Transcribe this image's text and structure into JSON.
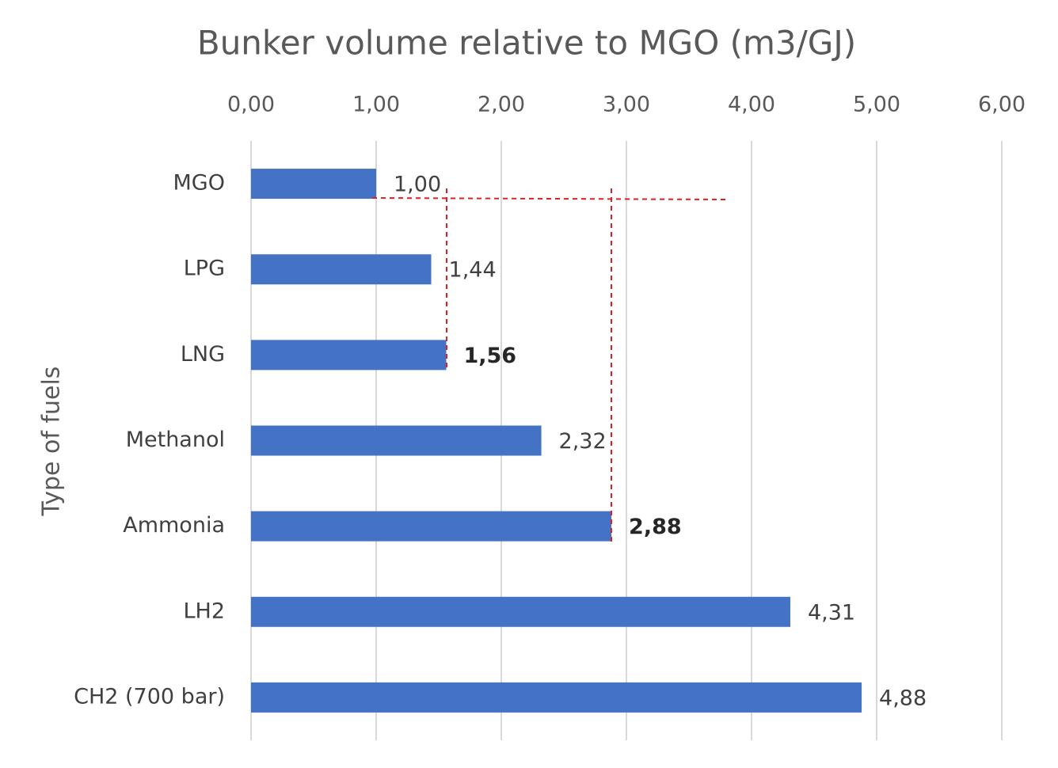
{
  "chart_data": {
    "type": "bar",
    "orientation": "horizontal",
    "title": "Bunker volume relative to MGO (m3/GJ)",
    "y_label": "Type of fuels",
    "categories": [
      "MGO",
      "LPG",
      "LNG",
      "Methanol",
      "Ammonia",
      "LH2",
      "CH2 (700 bar)"
    ],
    "values": [
      1.0,
      1.44,
      1.56,
      2.32,
      2.88,
      4.31,
      4.88
    ],
    "value_labels": [
      "1,00",
      "1,44",
      "1,56",
      "2,32",
      "2,88",
      "4,31",
      "4,88"
    ],
    "color": "#4472c4",
    "xlim": [
      0,
      6
    ],
    "xticks": [
      {
        "value": 0,
        "label": "0,00"
      },
      {
        "value": 1,
        "label": "1,00"
      },
      {
        "value": 2,
        "label": "2,00"
      },
      {
        "value": 3,
        "label": "3,00"
      },
      {
        "value": 4,
        "label": "4,00"
      },
      {
        "value": 5,
        "label": "5,00"
      },
      {
        "value": 6,
        "label": "6,00"
      }
    ],
    "grid": true
  }
}
